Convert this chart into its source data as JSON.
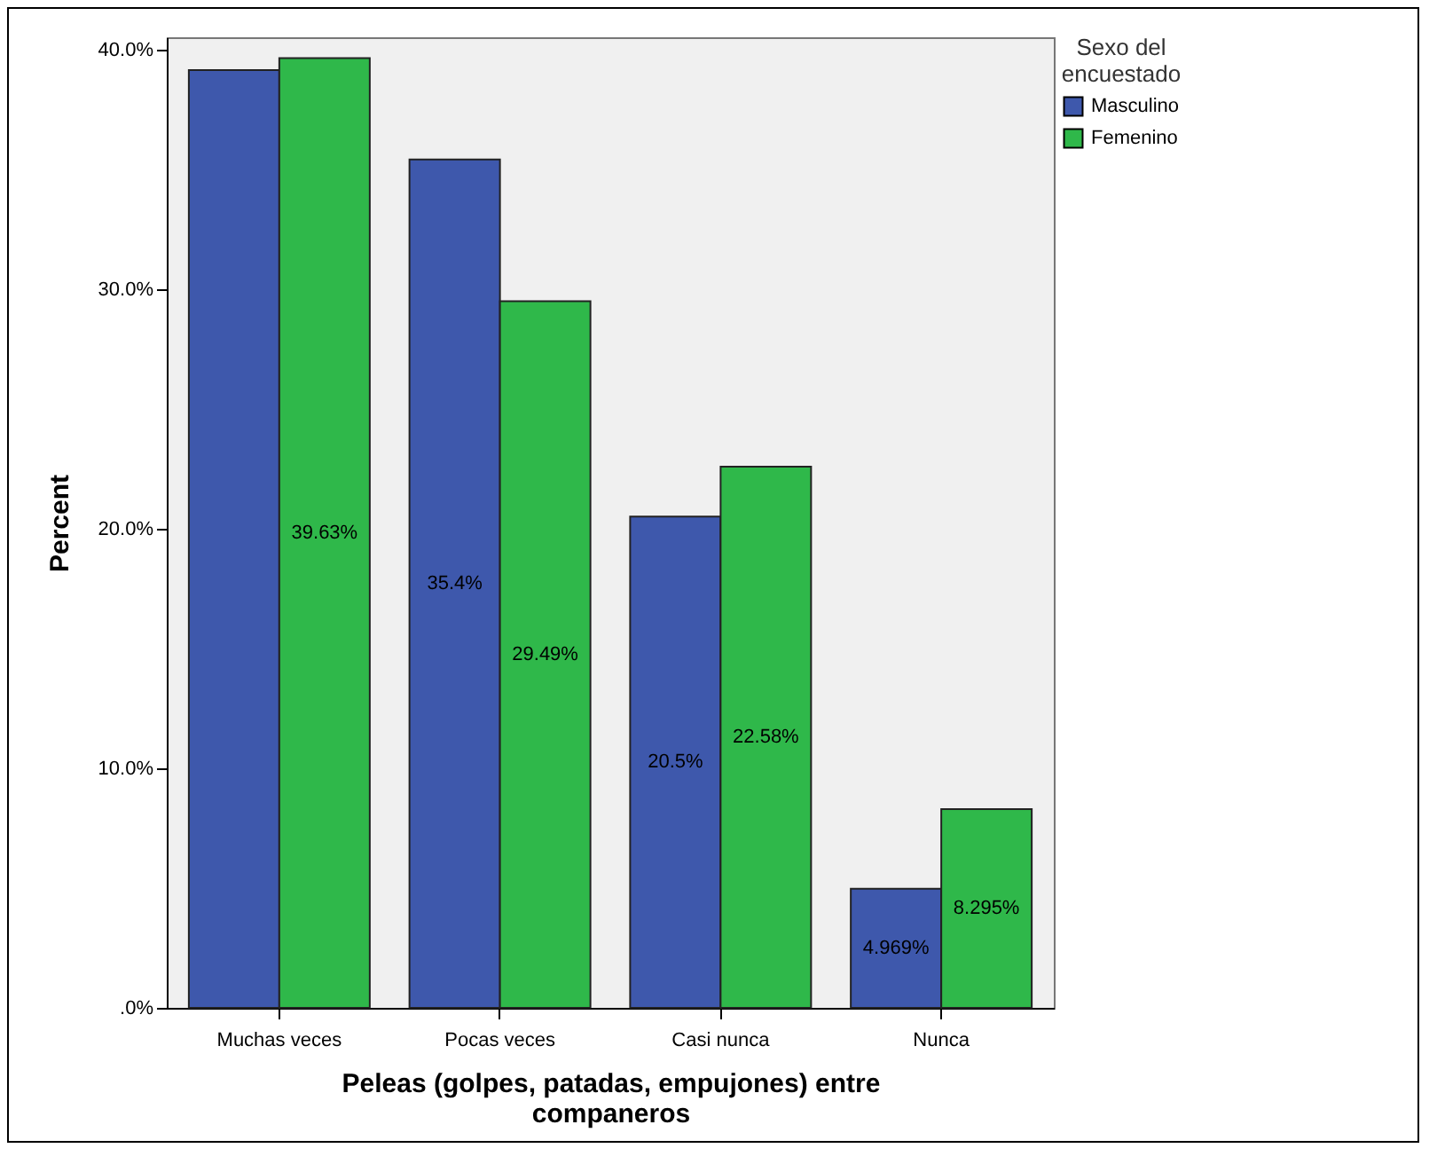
{
  "chart_data": {
    "type": "bar",
    "xlabel": "Peleas (golpes, patadas, empujones) entre companeros",
    "ylabel": "Percent",
    "legend_title": "Sexo del encuestado",
    "legend": "right",
    "categories": [
      "Muchas veces",
      "Pocas veces",
      "Casi nunca",
      "Nunca"
    ],
    "series": [
      {
        "name": "Masculino",
        "color": "#3e58ac",
        "values": [
          39.13,
          35.4,
          20.5,
          4.969
        ],
        "value_labels": [
          null,
          "35.4%",
          "20.5%",
          "4.969%"
        ]
      },
      {
        "name": "Femenino",
        "color": "#2fb84a",
        "values": [
          39.63,
          29.49,
          22.58,
          8.295
        ],
        "value_labels": [
          "39.63%",
          "29.49%",
          "22.58%",
          "8.295%"
        ]
      }
    ],
    "ylim": [
      0,
      40.5
    ],
    "yticks": [
      {
        "value": 0,
        "label": ".0%"
      },
      {
        "value": 10,
        "label": "10.0%"
      },
      {
        "value": 20,
        "label": "20.0%"
      },
      {
        "value": 30,
        "label": "30.0%"
      },
      {
        "value": 40,
        "label": "40.0%"
      }
    ],
    "grid": false
  }
}
